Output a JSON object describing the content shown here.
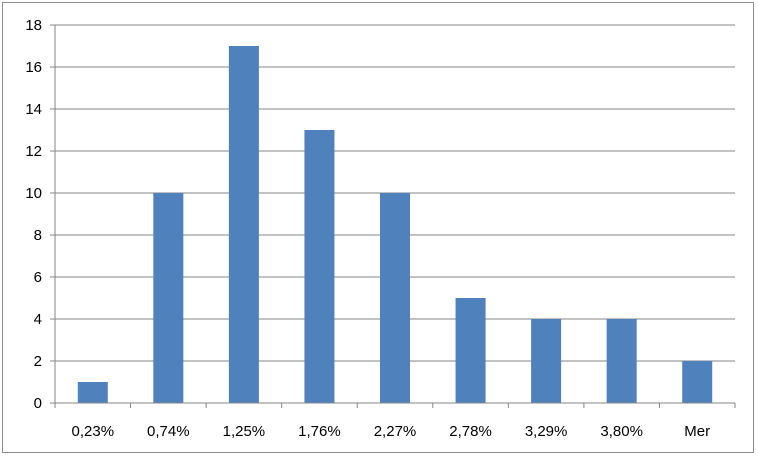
{
  "chart_data": {
    "type": "bar",
    "categories": [
      "0,23%",
      "0,74%",
      "1,25%",
      "1,76%",
      "2,27%",
      "2,78%",
      "3,29%",
      "3,80%",
      "Mer"
    ],
    "values": [
      1,
      10,
      17,
      13,
      10,
      5,
      4,
      4,
      2
    ],
    "ylim": [
      0,
      18
    ],
    "yticks": [
      "0",
      "2",
      "4",
      "6",
      "8",
      "10",
      "12",
      "14",
      "16",
      "18"
    ],
    "grid": true,
    "legend": "none",
    "bar_color": "#4F81BD",
    "grid_color": "#868686"
  }
}
